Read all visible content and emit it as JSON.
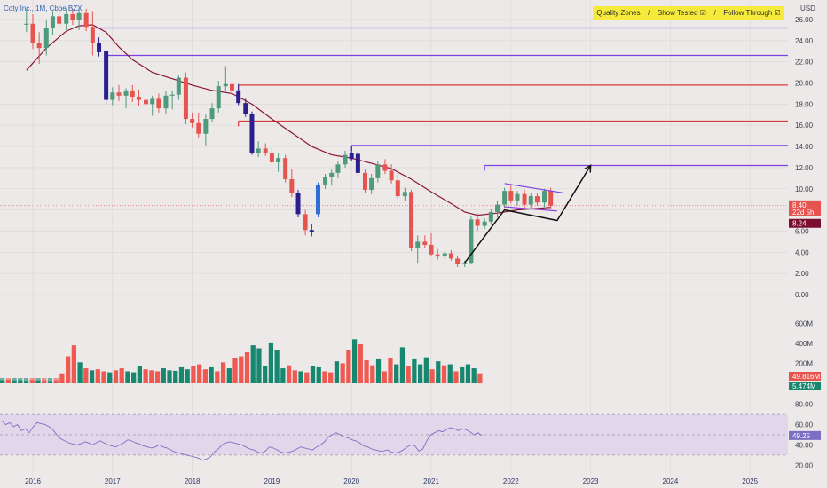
{
  "chart_data": [
    {
      "type": "candlestick",
      "title": "Coty Inc., 1M, Cboe BZX",
      "currency": "USD",
      "x_ticks": [
        "2016",
        "2017",
        "2018",
        "2019",
        "2020",
        "2021",
        "2022",
        "2023",
        "2024",
        "2025"
      ],
      "y_ticks": [
        "0.00",
        "2.00",
        "4.00",
        "6.00",
        "8.00",
        "10.00",
        "12.00",
        "14.00",
        "16.00",
        "18.00",
        "20.00",
        "22.00",
        "24.00",
        "26.00"
      ],
      "ylim": [
        0,
        26.5
      ],
      "last_price_label": "8.40",
      "countdown_label": "22d 5h",
      "ma_label": "8.24",
      "candles": [
        {
          "t": 2015.92,
          "o": 25.5,
          "h": 27.0,
          "l": 24.8,
          "c": 25.6
        },
        {
          "t": 2016.0,
          "o": 25.6,
          "h": 26.5,
          "l": 23.2,
          "c": 23.8
        },
        {
          "t": 2016.08,
          "o": 23.8,
          "h": 24.8,
          "l": 21.8,
          "c": 23.3
        },
        {
          "t": 2016.17,
          "o": 23.3,
          "h": 25.9,
          "l": 22.6,
          "c": 25.2
        },
        {
          "t": 2016.25,
          "o": 25.2,
          "h": 26.8,
          "l": 24.5,
          "c": 26.3
        },
        {
          "t": 2016.33,
          "o": 26.3,
          "h": 27.0,
          "l": 25.2,
          "c": 25.6
        },
        {
          "t": 2016.42,
          "o": 25.6,
          "h": 27.0,
          "l": 25.0,
          "c": 26.5
        },
        {
          "t": 2016.5,
          "o": 26.5,
          "h": 27.0,
          "l": 25.5,
          "c": 26.0
        },
        {
          "t": 2016.58,
          "o": 26.0,
          "h": 27.0,
          "l": 25.0,
          "c": 26.6
        },
        {
          "t": 2016.67,
          "o": 26.6,
          "h": 27.0,
          "l": 24.9,
          "c": 25.3
        },
        {
          "t": 2016.75,
          "o": 25.3,
          "h": 26.8,
          "l": 22.6,
          "c": 23.8
        },
        {
          "t": 2016.83,
          "o": 23.8,
          "h": 24.3,
          "l": 22.5,
          "c": 22.9,
          "color": "#2b1f8f"
        },
        {
          "t": 2016.92,
          "o": 23.0,
          "h": 23.1,
          "l": 18.0,
          "c": 18.4,
          "color": "#2b1f8f"
        },
        {
          "t": 2017.0,
          "o": 18.4,
          "h": 19.6,
          "l": 17.9,
          "c": 19.1
        },
        {
          "t": 2017.08,
          "o": 19.1,
          "h": 19.8,
          "l": 18.3,
          "c": 18.8
        },
        {
          "t": 2017.17,
          "o": 18.8,
          "h": 19.5,
          "l": 17.6,
          "c": 19.3
        },
        {
          "t": 2017.25,
          "o": 19.3,
          "h": 19.8,
          "l": 18.2,
          "c": 18.7
        },
        {
          "t": 2017.33,
          "o": 18.7,
          "h": 19.4,
          "l": 17.8,
          "c": 18.4
        },
        {
          "t": 2017.42,
          "o": 18.4,
          "h": 18.9,
          "l": 17.3,
          "c": 18.0
        },
        {
          "t": 2017.5,
          "o": 18.0,
          "h": 18.8,
          "l": 16.9,
          "c": 18.5
        },
        {
          "t": 2017.58,
          "o": 18.5,
          "h": 19.0,
          "l": 17.2,
          "c": 17.6
        },
        {
          "t": 2017.67,
          "o": 17.6,
          "h": 19.2,
          "l": 17.1,
          "c": 18.8
        },
        {
          "t": 2017.75,
          "o": 18.8,
          "h": 19.3,
          "l": 17.5,
          "c": 18.9
        },
        {
          "t": 2017.83,
          "o": 18.9,
          "h": 20.8,
          "l": 18.4,
          "c": 20.5
        },
        {
          "t": 2017.92,
          "o": 20.5,
          "h": 21.0,
          "l": 16.1,
          "c": 16.6
        },
        {
          "t": 2018.0,
          "o": 16.6,
          "h": 17.2,
          "l": 15.8,
          "c": 16.2
        },
        {
          "t": 2018.08,
          "o": 16.2,
          "h": 17.2,
          "l": 14.8,
          "c": 15.2
        },
        {
          "t": 2018.17,
          "o": 15.2,
          "h": 17.0,
          "l": 14.1,
          "c": 16.6
        },
        {
          "t": 2018.25,
          "o": 16.6,
          "h": 18.1,
          "l": 16.3,
          "c": 17.6
        },
        {
          "t": 2018.33,
          "o": 17.6,
          "h": 20.2,
          "l": 17.2,
          "c": 19.7
        },
        {
          "t": 2018.42,
          "o": 19.7,
          "h": 21.6,
          "l": 19.2,
          "c": 19.9
        },
        {
          "t": 2018.5,
          "o": 19.9,
          "h": 21.9,
          "l": 18.9,
          "c": 19.3
        },
        {
          "t": 2018.58,
          "o": 19.3,
          "h": 19.9,
          "l": 17.9,
          "c": 18.1,
          "color": "#2b1f8f"
        },
        {
          "t": 2018.67,
          "o": 18.1,
          "h": 18.5,
          "l": 16.8,
          "c": 17.1,
          "color": "#2b1f8f"
        },
        {
          "t": 2018.75,
          "o": 17.1,
          "h": 17.3,
          "l": 13.2,
          "c": 13.4,
          "color": "#2b1f8f"
        },
        {
          "t": 2018.83,
          "o": 13.4,
          "h": 14.5,
          "l": 13.0,
          "c": 13.8
        },
        {
          "t": 2018.92,
          "o": 13.8,
          "h": 14.3,
          "l": 13.1,
          "c": 13.4
        },
        {
          "t": 2019.0,
          "o": 13.4,
          "h": 13.9,
          "l": 12.2,
          "c": 12.5
        },
        {
          "t": 2019.08,
          "o": 12.5,
          "h": 13.4,
          "l": 11.6,
          "c": 12.9
        },
        {
          "t": 2019.17,
          "o": 12.9,
          "h": 13.2,
          "l": 10.6,
          "c": 10.9
        },
        {
          "t": 2019.25,
          "o": 10.9,
          "h": 11.9,
          "l": 9.2,
          "c": 9.6
        },
        {
          "t": 2019.33,
          "o": 9.6,
          "h": 9.9,
          "l": 7.3,
          "c": 7.6,
          "color": "#2b1f8f"
        },
        {
          "t": 2019.42,
          "o": 7.6,
          "h": 8.0,
          "l": 5.6,
          "c": 6.1
        },
        {
          "t": 2019.5,
          "o": 6.1,
          "h": 6.7,
          "l": 5.5,
          "c": 5.9,
          "color": "#2b1f8f"
        },
        {
          "t": 2019.58,
          "o": 7.6,
          "h": 10.6,
          "l": 7.3,
          "c": 10.4,
          "color": "#2d6fd6"
        },
        {
          "t": 2019.67,
          "o": 10.4,
          "h": 11.4,
          "l": 10.0,
          "c": 11.1
        },
        {
          "t": 2019.75,
          "o": 11.1,
          "h": 11.8,
          "l": 10.3,
          "c": 11.5
        },
        {
          "t": 2019.83,
          "o": 11.5,
          "h": 12.6,
          "l": 11.0,
          "c": 12.3
        },
        {
          "t": 2019.92,
          "o": 12.3,
          "h": 13.6,
          "l": 12.0,
          "c": 13.2
        },
        {
          "t": 2020.0,
          "o": 13.4,
          "h": 14.0,
          "l": 12.6,
          "c": 12.8,
          "color": "#2b1f8f"
        },
        {
          "t": 2020.08,
          "o": 13.3,
          "h": 13.6,
          "l": 11.2,
          "c": 11.5,
          "color": "#2b1f8f"
        },
        {
          "t": 2020.17,
          "o": 11.5,
          "h": 11.8,
          "l": 9.6,
          "c": 9.9
        },
        {
          "t": 2020.25,
          "o": 9.9,
          "h": 11.4,
          "l": 9.5,
          "c": 11.0
        },
        {
          "t": 2020.33,
          "o": 11.0,
          "h": 12.6,
          "l": 10.6,
          "c": 12.3
        },
        {
          "t": 2020.42,
          "o": 12.3,
          "h": 12.8,
          "l": 11.4,
          "c": 11.7
        },
        {
          "t": 2020.5,
          "o": 11.7,
          "h": 12.3,
          "l": 10.5,
          "c": 10.8
        },
        {
          "t": 2020.58,
          "o": 10.8,
          "h": 11.4,
          "l": 9.0,
          "c": 9.3
        },
        {
          "t": 2020.67,
          "o": 9.3,
          "h": 10.1,
          "l": 8.8,
          "c": 9.7
        },
        {
          "t": 2020.75,
          "o": 9.7,
          "h": 9.9,
          "l": 4.1,
          "c": 4.4
        },
        {
          "t": 2020.83,
          "o": 4.4,
          "h": 5.6,
          "l": 3.0,
          "c": 5.0
        },
        {
          "t": 2020.92,
          "o": 5.0,
          "h": 5.6,
          "l": 4.4,
          "c": 4.7
        },
        {
          "t": 2021.0,
          "o": 4.7,
          "h": 5.8,
          "l": 3.6,
          "c": 3.8
        },
        {
          "t": 2021.08,
          "o": 3.8,
          "h": 4.3,
          "l": 3.3,
          "c": 3.6
        },
        {
          "t": 2021.17,
          "o": 3.6,
          "h": 4.1,
          "l": 3.4,
          "c": 3.9
        },
        {
          "t": 2021.25,
          "o": 3.9,
          "h": 4.2,
          "l": 3.2,
          "c": 3.4
        },
        {
          "t": 2021.33,
          "o": 3.4,
          "h": 3.7,
          "l": 2.6,
          "c": 2.9
        },
        {
          "t": 2021.42,
          "o": 2.9,
          "h": 3.2,
          "l": 2.6,
          "c": 3.0
        },
        {
          "t": 2021.5,
          "o": 3.0,
          "h": 7.4,
          "l": 2.9,
          "c": 7.1
        },
        {
          "t": 2021.58,
          "o": 7.1,
          "h": 7.7,
          "l": 6.0,
          "c": 6.5
        },
        {
          "t": 2021.67,
          "o": 6.5,
          "h": 7.2,
          "l": 6.2,
          "c": 6.9
        },
        {
          "t": 2021.75,
          "o": 6.9,
          "h": 8.1,
          "l": 6.6,
          "c": 7.8
        },
        {
          "t": 2021.83,
          "o": 7.8,
          "h": 8.9,
          "l": 7.3,
          "c": 8.5
        },
        {
          "t": 2021.92,
          "o": 8.5,
          "h": 10.1,
          "l": 8.2,
          "c": 9.8
        },
        {
          "t": 2022.0,
          "o": 9.8,
          "h": 10.3,
          "l": 8.6,
          "c": 8.9
        },
        {
          "t": 2022.08,
          "o": 8.9,
          "h": 9.8,
          "l": 8.4,
          "c": 9.5
        },
        {
          "t": 2022.17,
          "o": 9.5,
          "h": 9.9,
          "l": 8.1,
          "c": 8.5
        },
        {
          "t": 2022.25,
          "o": 8.5,
          "h": 9.6,
          "l": 8.1,
          "c": 9.3
        },
        {
          "t": 2022.33,
          "o": 9.3,
          "h": 9.6,
          "l": 8.4,
          "c": 8.7
        },
        {
          "t": 2022.42,
          "o": 8.7,
          "h": 10.0,
          "l": 8.3,
          "c": 9.8
        },
        {
          "t": 2022.5,
          "o": 9.8,
          "h": 10.1,
          "l": 8.1,
          "c": 8.4
        }
      ],
      "moving_average": [
        {
          "t": 2015.92,
          "v": 21.2
        },
        {
          "t": 2016.17,
          "v": 23.3
        },
        {
          "t": 2016.42,
          "v": 24.9
        },
        {
          "t": 2016.58,
          "v": 25.4
        },
        {
          "t": 2016.75,
          "v": 25.5
        },
        {
          "t": 2016.92,
          "v": 24.8
        },
        {
          "t": 2017.08,
          "v": 23.4
        },
        {
          "t": 2017.25,
          "v": 22.2
        },
        {
          "t": 2017.5,
          "v": 21.0
        },
        {
          "t": 2017.75,
          "v": 20.4
        },
        {
          "t": 2018.0,
          "v": 19.8
        },
        {
          "t": 2018.25,
          "v": 19.3
        },
        {
          "t": 2018.5,
          "v": 19.0
        },
        {
          "t": 2018.75,
          "v": 18.0
        },
        {
          "t": 2019.0,
          "v": 16.6
        },
        {
          "t": 2019.25,
          "v": 15.3
        },
        {
          "t": 2019.5,
          "v": 14.0
        },
        {
          "t": 2019.75,
          "v": 13.2
        },
        {
          "t": 2020.0,
          "v": 12.9
        },
        {
          "t": 2020.25,
          "v": 12.4
        },
        {
          "t": 2020.5,
          "v": 11.9
        },
        {
          "t": 2020.75,
          "v": 10.9
        },
        {
          "t": 2021.0,
          "v": 9.7
        },
        {
          "t": 2021.25,
          "v": 8.6
        },
        {
          "t": 2021.42,
          "v": 7.8
        },
        {
          "t": 2021.58,
          "v": 7.5
        },
        {
          "t": 2021.83,
          "v": 7.7
        },
        {
          "t": 2022.08,
          "v": 8.0
        },
        {
          "t": 2022.5,
          "v": 8.24
        }
      ],
      "zones": [
        {
          "start": 2016.75,
          "price": 25.2,
          "color": "#7c3fe0"
        },
        {
          "start": 2016.92,
          "price": 22.6,
          "color": "#7c3fe0"
        },
        {
          "start": 2018.58,
          "price": 19.8,
          "color": "#d93b3b"
        },
        {
          "start": 2018.58,
          "price": 16.4,
          "color": "#d93b3b"
        },
        {
          "start": 2020.0,
          "price": 14.1,
          "color": "#7c3fe0"
        },
        {
          "start": 2021.67,
          "price": 12.2,
          "color": "#7c3fe0"
        }
      ],
      "flag_lines": [
        {
          "t1": 2021.92,
          "p1": 10.5,
          "t2": 2022.67,
          "p2": 9.6
        },
        {
          "t1": 2021.92,
          "p1": 8.3,
          "t2": 2022.58,
          "p2": 7.9
        }
      ],
      "projection": [
        {
          "t": 2021.42,
          "p": 3.0
        },
        {
          "t": 2021.92,
          "p": 8.0
        },
        {
          "t": 2022.58,
          "p": 7.0
        },
        {
          "t": 2023.0,
          "p": 12.2
        }
      ],
      "zones_legend": [
        "Quality Zones",
        "/",
        "Show Tested ☑",
        "/",
        "Follow Through ☑"
      ]
    },
    {
      "type": "bar",
      "title": "Volume",
      "y_ticks": [
        "200M",
        "400M",
        "600M"
      ],
      "ylim": [
        0,
        700
      ],
      "last_value_label": "49.816M",
      "second_value_label": "5.474M",
      "values": [
        30,
        35,
        28,
        30,
        25,
        32,
        28,
        30,
        22,
        30,
        100,
        270,
        380,
        210,
        150,
        130,
        140,
        120,
        110,
        130,
        150,
        120,
        110,
        170,
        140,
        130,
        120,
        150,
        130,
        125,
        160,
        140,
        170,
        190,
        140,
        160,
        120,
        210,
        150,
        250,
        270,
        310,
        380,
        350,
        170,
        400,
        330,
        150,
        180,
        130,
        120,
        110,
        170,
        160,
        120,
        110,
        220,
        200,
        330,
        440,
        390,
        230,
        180,
        240,
        120,
        250,
        190,
        360,
        170,
        240,
        190,
        260,
        140,
        220,
        180,
        190,
        120,
        160,
        190,
        150,
        100
      ],
      "up": [
        1,
        0,
        1,
        1,
        1,
        0,
        1,
        0,
        1,
        0,
        0,
        0,
        0,
        1,
        0,
        1,
        0,
        0,
        1,
        0,
        0,
        1,
        1,
        1,
        0,
        0,
        0,
        1,
        1,
        1,
        1,
        1,
        0,
        0,
        0,
        1,
        0,
        0,
        1,
        0,
        0,
        0,
        1,
        1,
        1,
        1,
        1,
        1,
        0,
        0,
        1,
        0,
        1,
        1,
        0,
        0,
        1,
        0,
        0,
        1,
        0,
        0,
        0,
        1,
        0,
        0,
        1,
        1,
        0,
        1,
        1,
        1,
        0,
        1,
        0,
        1,
        0,
        1,
        1,
        1,
        0
      ]
    },
    {
      "type": "line",
      "title": "RSI",
      "y_ticks": [
        "20.00",
        "40.00",
        "60.00",
        "80.00"
      ],
      "ylim": [
        15,
        85
      ],
      "band": [
        30,
        70
      ],
      "last_value_label": "49.25",
      "values": [
        64,
        60,
        62,
        58,
        60,
        54,
        56,
        52,
        58,
        62,
        61,
        60,
        58,
        55,
        50,
        46,
        44,
        42,
        41,
        40,
        41,
        43,
        42,
        40,
        42,
        44,
        42,
        40,
        39,
        38,
        40,
        42,
        45,
        44,
        42,
        41,
        39,
        38,
        37,
        38,
        40,
        38,
        37,
        35,
        33,
        32,
        31,
        30,
        29,
        28,
        27,
        25,
        26,
        28,
        33,
        36,
        40,
        42,
        43,
        42,
        41,
        40,
        38,
        36,
        35,
        33,
        32,
        34,
        38,
        37,
        35,
        33,
        32,
        33,
        34,
        36,
        38,
        37,
        36,
        35,
        38,
        40,
        43,
        48,
        50,
        52,
        50,
        48,
        47,
        45,
        44,
        42,
        39,
        38,
        36,
        35,
        34,
        34,
        35,
        33,
        32,
        33,
        35,
        38,
        40,
        39,
        34,
        36,
        44,
        50,
        52,
        54,
        53,
        55,
        57,
        56,
        54,
        56,
        55,
        53,
        50,
        52,
        49.25
      ]
    }
  ]
}
